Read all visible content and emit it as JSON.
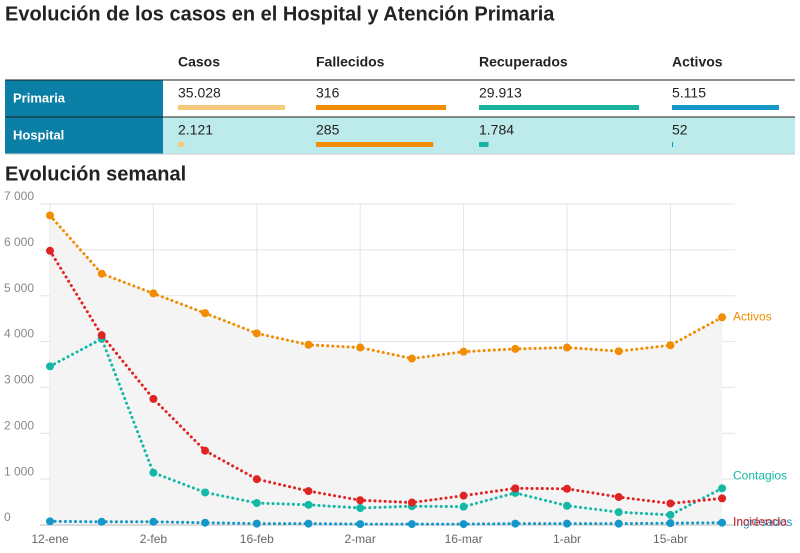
{
  "title": "Evolución de los casos en el Hospital y Atención Primaria",
  "table": {
    "columns": [
      "Casos",
      "Fallecidos",
      "Recuperados",
      "Activos"
    ],
    "colors": [
      "#f7c97c",
      "#f28c00",
      "#17b3a0",
      "#1597c9"
    ],
    "rows": [
      {
        "name": "Primaria",
        "cells": [
          {
            "value": 35028,
            "label": "35.028"
          },
          316,
          {
            "value": 29913,
            "label": "29.913"
          },
          {
            "value": 5115,
            "label": "5.115"
          }
        ]
      },
      {
        "name": "Hospital",
        "cells": [
          {
            "value": 2121,
            "label": "2.121"
          },
          285,
          {
            "value": 1784,
            "label": "1.784"
          },
          52
        ]
      }
    ]
  },
  "chart_data": {
    "type": "line",
    "title": "Evolución semanal",
    "categories": [
      "12-ene",
      null,
      "2-feb",
      null,
      "16-feb",
      null,
      "2-mar",
      null,
      "16-mar",
      null,
      "1-abr",
      null,
      "15-abr",
      null
    ],
    "series": [
      {
        "name": "Activos",
        "color": "#f28c00",
        "values": [
          6750,
          5480,
          5050,
          4620,
          4180,
          3930,
          3870,
          3630,
          3780,
          3840,
          3870,
          3790,
          3920,
          4530
        ]
      },
      {
        "name": "Incidencia",
        "color": "#e02424",
        "values": [
          5980,
          4140,
          2750,
          1620,
          1000,
          740,
          540,
          490,
          640,
          800,
          790,
          610,
          470,
          580
        ]
      },
      {
        "name": "Contagios",
        "color": "#13b8a6",
        "values": [
          3460,
          4060,
          1140,
          710,
          480,
          440,
          370,
          410,
          400,
          700,
          420,
          280,
          220,
          800
        ]
      },
      {
        "name": "Ingresados",
        "color": "#1597c9",
        "values": [
          80,
          70,
          70,
          50,
          30,
          30,
          20,
          20,
          20,
          30,
          30,
          30,
          40,
          50
        ]
      }
    ],
    "ylim": [
      0,
      7000
    ],
    "yticks": [
      0,
      {
        "value": 1000,
        "label": "1 000"
      },
      {
        "value": 2000,
        "label": "2 000"
      },
      {
        "value": 3000,
        "label": "3 000"
      },
      {
        "value": 4000,
        "label": "4 000"
      },
      {
        "value": 5000,
        "label": "5 000"
      },
      {
        "value": 6000,
        "label": "6 000"
      },
      {
        "value": 7000,
        "label": "7 000"
      }
    ],
    "grid": true
  }
}
